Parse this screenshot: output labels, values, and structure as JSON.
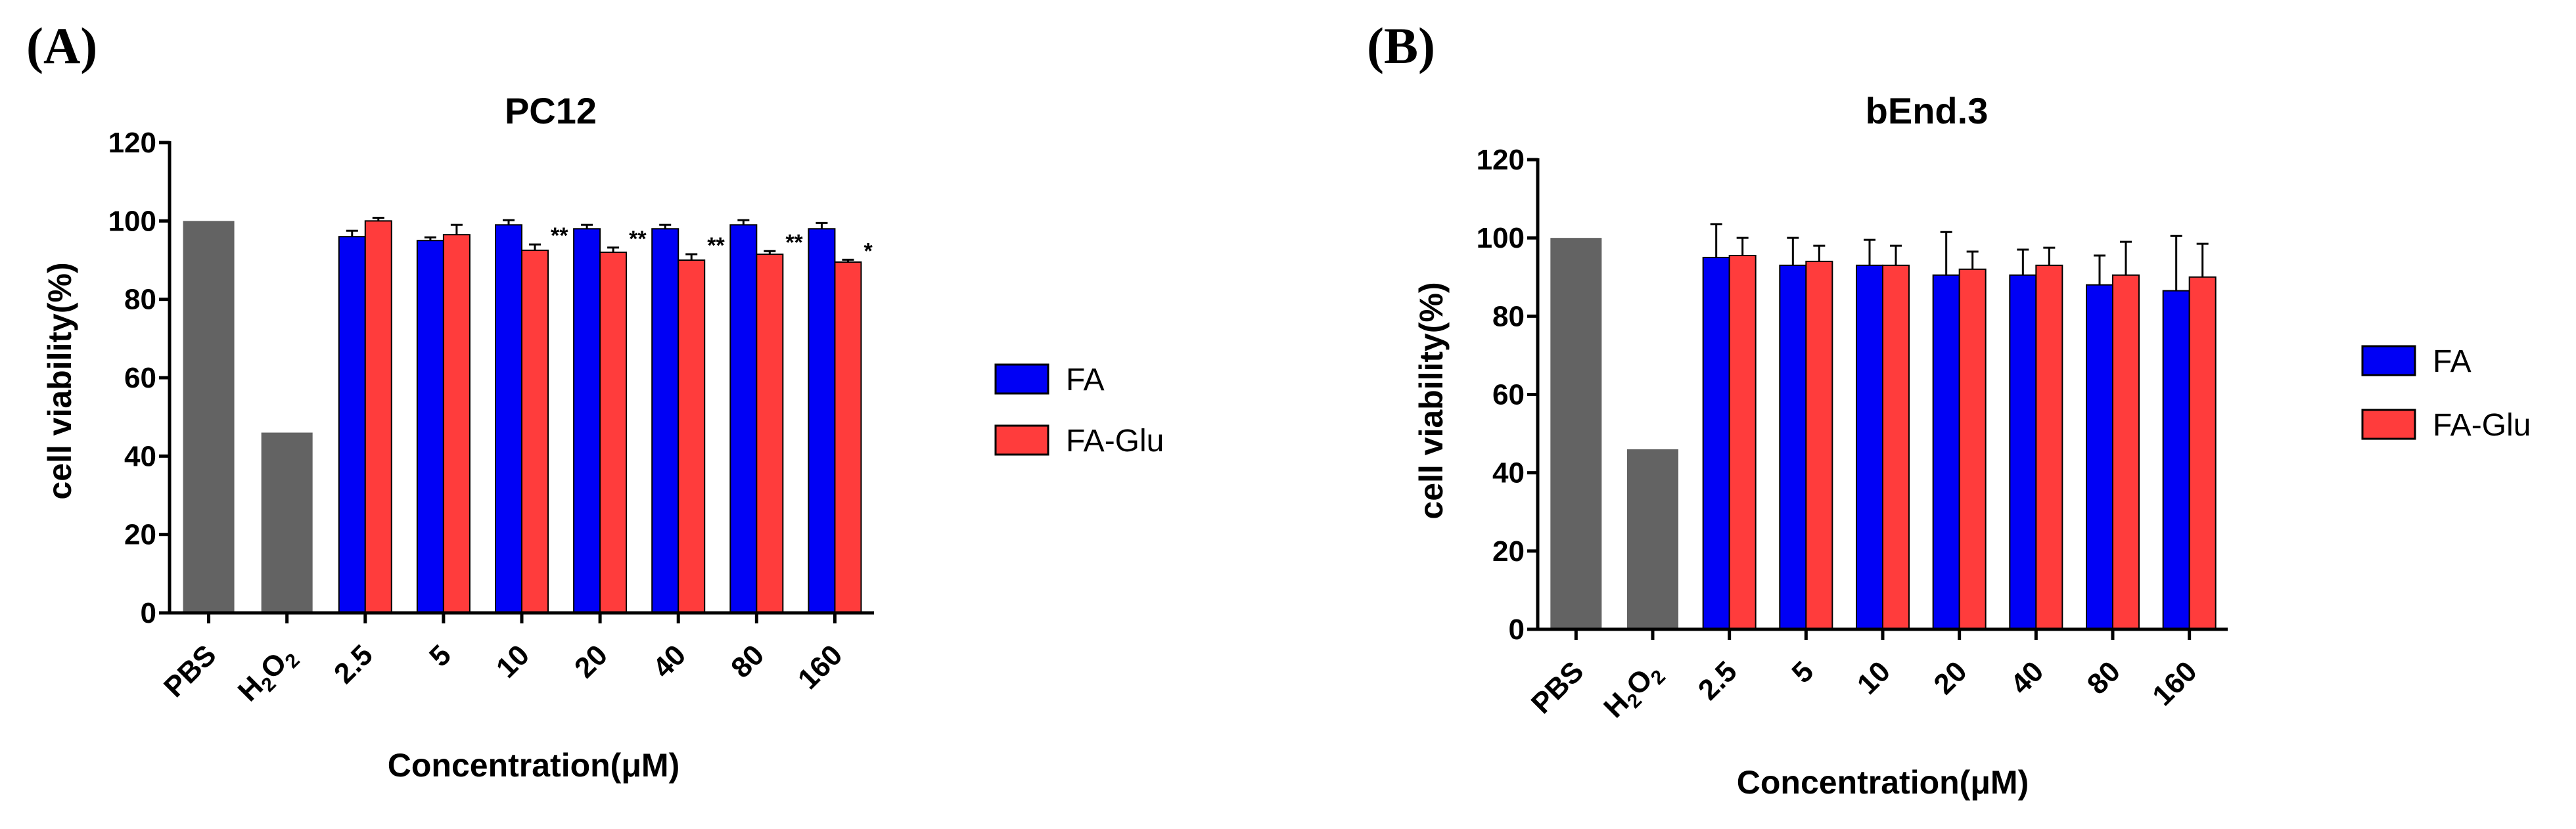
{
  "colors": {
    "control": "#636363",
    "FA": "#0000f5",
    "FA-Glu": "#ff3c3c",
    "edge": "#000000"
  },
  "chart_data": [
    {
      "panel_label": "(A)",
      "type": "bar",
      "title": "PC12",
      "xlabel": "Concentration(μM)",
      "ylabel": "cell viability(%)",
      "ylim": [
        0,
        120
      ],
      "yticks": [
        "0",
        "20",
        "40",
        "60",
        "80",
        "100",
        "120"
      ],
      "categories": [
        "PBS",
        "H2O2",
        "2.5",
        "5",
        "10",
        "20",
        "40",
        "80",
        "160"
      ],
      "controls": [
        {
          "category": "PBS",
          "value": 100
        },
        {
          "category": "H2O2",
          "value": 46
        }
      ],
      "series": [
        {
          "name": "FA",
          "values": [
            null,
            null,
            96,
            95,
            99,
            98,
            98,
            99,
            98
          ],
          "errors": [
            null,
            null,
            1.5,
            0.8,
            1.2,
            1.0,
            1.0,
            1.2,
            1.5
          ]
        },
        {
          "name": "FA-Glu",
          "values": [
            null,
            null,
            100,
            96.5,
            92.5,
            92,
            90,
            91.5,
            89.5
          ],
          "errors": [
            null,
            null,
            0.8,
            2.5,
            1.5,
            1.2,
            1.5,
            0.8,
            0.6
          ]
        }
      ],
      "significance": [
        null,
        null,
        "",
        "",
        "**",
        "**",
        "**",
        "**",
        "*"
      ],
      "legend": [
        "FA",
        "FA-Glu"
      ]
    },
    {
      "panel_label": "(B)",
      "type": "bar",
      "title": "bEnd.3",
      "xlabel": "Concentration(μM)",
      "ylabel": "cell viability(%)",
      "ylim": [
        0,
        120
      ],
      "yticks": [
        "0",
        "20",
        "40",
        "60",
        "80",
        "100",
        "120"
      ],
      "categories": [
        "PBS",
        "H2O2",
        "2.5",
        "5",
        "10",
        "20",
        "40",
        "80",
        "160"
      ],
      "controls": [
        {
          "category": "PBS",
          "value": 100
        },
        {
          "category": "H2O2",
          "value": 46
        }
      ],
      "series": [
        {
          "name": "FA",
          "values": [
            null,
            null,
            95,
            93,
            93,
            90.5,
            90.5,
            88,
            86.5
          ],
          "errors": [
            null,
            null,
            8.5,
            7,
            6.5,
            11,
            6.5,
            7.5,
            14
          ]
        },
        {
          "name": "FA-Glu",
          "values": [
            null,
            null,
            95.5,
            94,
            93,
            92,
            93,
            90.5,
            90
          ],
          "errors": [
            null,
            null,
            4.5,
            4,
            5,
            4.5,
            4.5,
            8.5,
            8.5
          ]
        }
      ],
      "significance": [
        null,
        null,
        "",
        "",
        "",
        "",
        "",
        "",
        ""
      ],
      "legend": [
        "FA",
        "FA-Glu"
      ]
    }
  ]
}
